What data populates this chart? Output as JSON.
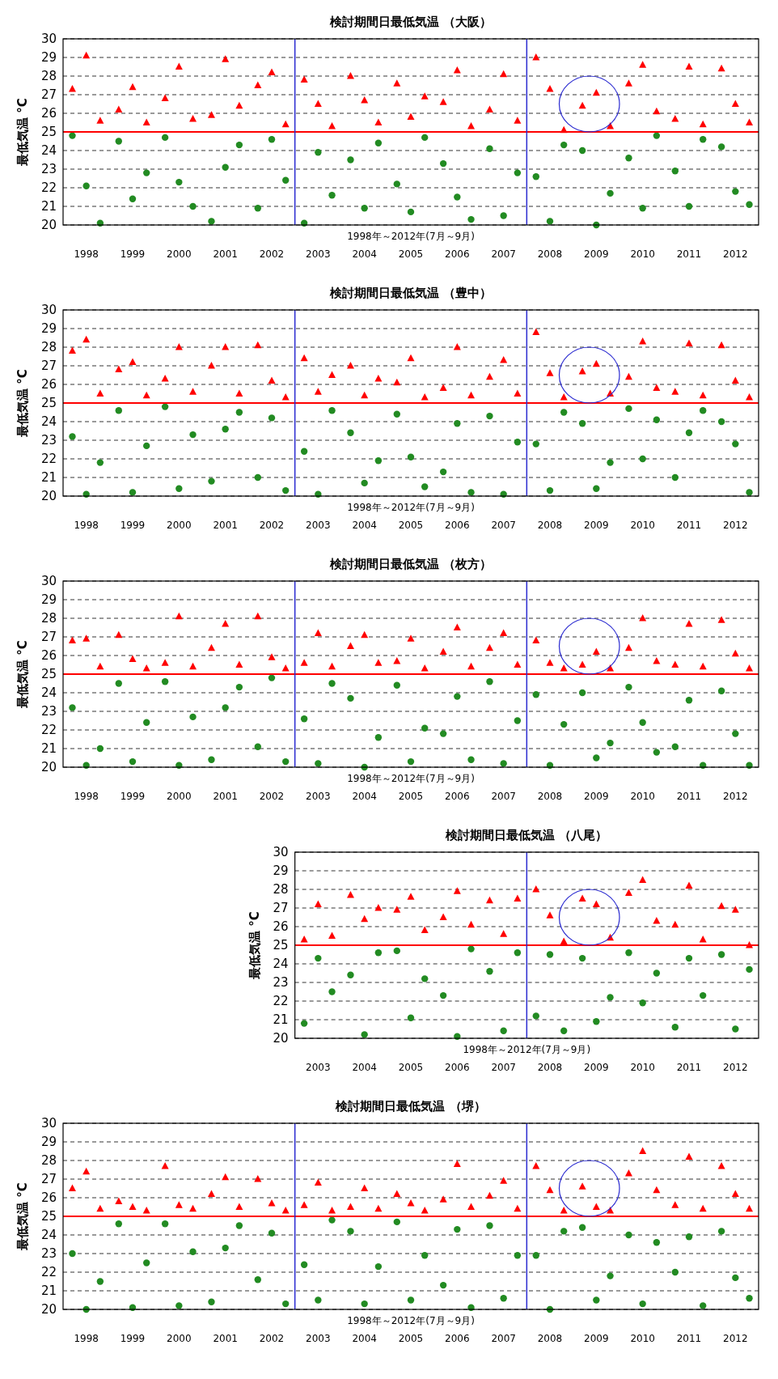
{
  "chart_data": [
    {
      "type": "scatter",
      "title": "検討期間日最低気温 （大阪）",
      "xlabel": "1998年～2012年(7月～9月)",
      "ylabel": "最低気温 °C",
      "xlim": [
        1998,
        2013
      ],
      "xticks": [
        {
          "value": 1998.5,
          "label": "1998"
        },
        {
          "value": 1999.5,
          "label": "1999"
        },
        {
          "value": 2000.5,
          "label": "2000"
        },
        {
          "value": 2001.5,
          "label": "2001"
        },
        {
          "value": 2002.5,
          "label": "2002"
        },
        {
          "value": 2003.5,
          "label": "2003"
        },
        {
          "value": 2004.5,
          "label": "2004"
        },
        {
          "value": 2005.5,
          "label": "2005"
        },
        {
          "value": 2006.5,
          "label": "2006"
        },
        {
          "value": 2007.5,
          "label": "2007"
        },
        {
          "value": 2008.5,
          "label": "2008"
        },
        {
          "value": 2009.5,
          "label": "2009"
        },
        {
          "value": 2010.5,
          "label": "2010"
        },
        {
          "value": 2011.5,
          "label": "2011"
        },
        {
          "value": 2012.5,
          "label": "2012"
        }
      ],
      "ylim": [
        20,
        30
      ],
      "yticks": [
        20,
        21,
        22,
        23,
        24,
        25,
        26,
        27,
        28,
        29,
        30
      ],
      "grid": "y",
      "line_style": "dashed",
      "x": [
        1998.2,
        1998.5,
        1998.8,
        1999.2,
        1999.5,
        1999.8,
        2000.2,
        2000.5,
        2000.8,
        2001.2,
        2001.5,
        2001.8,
        2002.2,
        2002.5,
        2002.8,
        2003.2,
        2003.5,
        2003.8,
        2004.2,
        2004.5,
        2004.8,
        2005.2,
        2005.5,
        2005.8,
        2006.2,
        2006.5,
        2006.8,
        2007.2,
        2007.5,
        2007.8,
        2008.2,
        2008.5,
        2008.8,
        2009.2,
        2009.5,
        2009.8,
        2010.2,
        2010.5,
        2010.8,
        2011.2,
        2011.5,
        2011.8,
        2012.2,
        2012.5,
        2012.8
      ],
      "series": [
        {
          "color": "#ff0000",
          "marker": "triangle",
          "values": [
            27.3,
            29.1,
            25.6,
            26.2,
            27.4,
            25.5,
            26.8,
            28.5,
            25.7,
            25.9,
            28.9,
            26.4,
            27.5,
            28.2,
            25.4,
            27.8,
            26.5,
            25.3,
            28.0,
            26.7,
            25.5,
            27.6,
            25.8,
            26.9,
            26.6,
            28.3,
            25.3,
            26.2,
            28.1,
            25.6,
            29.0,
            27.3,
            25.1,
            26.4,
            27.1,
            25.3,
            27.6,
            28.6,
            26.1,
            25.7,
            28.5,
            25.4,
            28.4,
            26.5,
            25.5
          ]
        },
        {
          "color": "#228b22",
          "marker": "circle",
          "values": [
            24.8,
            22.1,
            20.1,
            24.5,
            21.4,
            22.8,
            24.7,
            22.3,
            21.0,
            20.2,
            23.1,
            24.3,
            20.9,
            24.6,
            22.4,
            20.1,
            23.9,
            21.6,
            23.5,
            20.9,
            24.4,
            22.2,
            20.7,
            24.7,
            23.3,
            21.5,
            20.3,
            24.1,
            20.5,
            22.8,
            22.6,
            20.2,
            24.3,
            24.0,
            20.0,
            21.7,
            23.6,
            20.9,
            24.8,
            22.9,
            21.0,
            24.6,
            24.2,
            21.8,
            21.1
          ]
        }
      ],
      "ref_lines": [
        {
          "axis": "y",
          "value": 25,
          "color": "#ff0000",
          "line_style": "solid"
        },
        {
          "axis": "x",
          "value": 2003,
          "color": "#2a2ad0",
          "line_style": "solid"
        },
        {
          "axis": "x",
          "value": 2008,
          "color": "#2a2ad0",
          "line_style": "solid"
        }
      ]
    },
    {
      "type": "scatter",
      "title": "検討期間日最低気温 （豊中）",
      "xlabel": "1998年～2012年(7月～9月)",
      "ylabel": "最低気温 °C",
      "xlim": [
        1998,
        2013
      ],
      "xticks": [
        {
          "value": 1998.5,
          "label": "1998"
        },
        {
          "value": 1999.5,
          "label": "1999"
        },
        {
          "value": 2000.5,
          "label": "2000"
        },
        {
          "value": 2001.5,
          "label": "2001"
        },
        {
          "value": 2002.5,
          "label": "2002"
        },
        {
          "value": 2003.5,
          "label": "2003"
        },
        {
          "value": 2004.5,
          "label": "2004"
        },
        {
          "value": 2005.5,
          "label": "2005"
        },
        {
          "value": 2006.5,
          "label": "2006"
        },
        {
          "value": 2007.5,
          "label": "2007"
        },
        {
          "value": 2008.5,
          "label": "2008"
        },
        {
          "value": 2009.5,
          "label": "2009"
        },
        {
          "value": 2010.5,
          "label": "2010"
        },
        {
          "value": 2011.5,
          "label": "2011"
        },
        {
          "value": 2012.5,
          "label": "2012"
        }
      ],
      "ylim": [
        20,
        30
      ],
      "yticks": [
        20,
        21,
        22,
        23,
        24,
        25,
        26,
        27,
        28,
        29,
        30
      ],
      "grid": "y",
      "line_style": "dashed",
      "x": [
        1998.2,
        1998.5,
        1998.8,
        1999.2,
        1999.5,
        1999.8,
        2000.2,
        2000.5,
        2000.8,
        2001.2,
        2001.5,
        2001.8,
        2002.2,
        2002.5,
        2002.8,
        2003.2,
        2003.5,
        2003.8,
        2004.2,
        2004.5,
        2004.8,
        2005.2,
        2005.5,
        2005.8,
        2006.2,
        2006.5,
        2006.8,
        2007.2,
        2007.5,
        2007.8,
        2008.2,
        2008.5,
        2008.8,
        2009.2,
        2009.5,
        2009.8,
        2010.2,
        2010.5,
        2010.8,
        2011.2,
        2011.5,
        2011.8,
        2012.2,
        2012.5,
        2012.8
      ],
      "series": [
        {
          "color": "#ff0000",
          "marker": "triangle",
          "values": [
            27.8,
            28.4,
            25.5,
            26.8,
            27.2,
            25.4,
            26.3,
            28.0,
            25.6,
            27.0,
            28.0,
            25.5,
            28.1,
            26.2,
            25.3,
            27.4,
            25.6,
            26.5,
            27.0,
            25.4,
            26.3,
            26.1,
            27.4,
            25.3,
            25.8,
            28.0,
            25.4,
            26.4,
            27.3,
            25.5,
            28.8,
            26.6,
            25.3,
            26.7,
            27.1,
            25.5,
            26.4,
            28.3,
            25.8,
            25.6,
            28.2,
            25.4,
            28.1,
            26.2,
            25.3
          ]
        },
        {
          "color": "#228b22",
          "marker": "circle",
          "values": [
            23.2,
            20.1,
            21.8,
            24.6,
            20.2,
            22.7,
            24.8,
            20.4,
            23.3,
            20.8,
            23.6,
            24.5,
            21.0,
            24.2,
            20.3,
            22.4,
            20.1,
            24.6,
            23.4,
            20.7,
            21.9,
            24.4,
            22.1,
            20.5,
            21.3,
            23.9,
            20.2,
            24.3,
            20.1,
            22.9,
            22.8,
            20.3,
            24.5,
            23.9,
            20.4,
            21.8,
            24.7,
            22.0,
            24.1,
            21.0,
            23.4,
            24.6,
            24.0,
            22.8,
            20.2
          ]
        }
      ],
      "ref_lines": [
        {
          "axis": "y",
          "value": 25,
          "color": "#ff0000",
          "line_style": "solid"
        },
        {
          "axis": "x",
          "value": 2003,
          "color": "#2a2ad0",
          "line_style": "solid"
        },
        {
          "axis": "x",
          "value": 2008,
          "color": "#2a2ad0",
          "line_style": "solid"
        }
      ]
    },
    {
      "type": "scatter",
      "title": "検討期間日最低気温 （枚方）",
      "xlabel": "1998年～2012年(7月～9月)",
      "ylabel": "最低気温 °C",
      "xlim": [
        1998,
        2013
      ],
      "xticks": [
        {
          "value": 1998.5,
          "label": "1998"
        },
        {
          "value": 1999.5,
          "label": "1999"
        },
        {
          "value": 2000.5,
          "label": "2000"
        },
        {
          "value": 2001.5,
          "label": "2001"
        },
        {
          "value": 2002.5,
          "label": "2002"
        },
        {
          "value": 2003.5,
          "label": "2003"
        },
        {
          "value": 2004.5,
          "label": "2004"
        },
        {
          "value": 2005.5,
          "label": "2005"
        },
        {
          "value": 2006.5,
          "label": "2006"
        },
        {
          "value": 2007.5,
          "label": "2007"
        },
        {
          "value": 2008.5,
          "label": "2008"
        },
        {
          "value": 2009.5,
          "label": "2009"
        },
        {
          "value": 2010.5,
          "label": "2010"
        },
        {
          "value": 2011.5,
          "label": "2011"
        },
        {
          "value": 2012.5,
          "label": "2012"
        }
      ],
      "ylim": [
        20,
        30
      ],
      "yticks": [
        20,
        21,
        22,
        23,
        24,
        25,
        26,
        27,
        28,
        29,
        30
      ],
      "grid": "y",
      "line_style": "dashed",
      "x": [
        1998.2,
        1998.5,
        1998.8,
        1999.2,
        1999.5,
        1999.8,
        2000.2,
        2000.5,
        2000.8,
        2001.2,
        2001.5,
        2001.8,
        2002.2,
        2002.5,
        2002.8,
        2003.2,
        2003.5,
        2003.8,
        2004.2,
        2004.5,
        2004.8,
        2005.2,
        2005.5,
        2005.8,
        2006.2,
        2006.5,
        2006.8,
        2007.2,
        2007.5,
        2007.8,
        2008.2,
        2008.5,
        2008.8,
        2009.2,
        2009.5,
        2009.8,
        2010.2,
        2010.5,
        2010.8,
        2011.2,
        2011.5,
        2011.8,
        2012.2,
        2012.5,
        2012.8
      ],
      "series": [
        {
          "color": "#ff0000",
          "marker": "triangle",
          "values": [
            26.8,
            26.9,
            25.4,
            27.1,
            25.8,
            25.3,
            25.6,
            28.1,
            25.4,
            26.4,
            27.7,
            25.5,
            28.1,
            25.9,
            25.3,
            25.6,
            27.2,
            25.4,
            26.5,
            27.1,
            25.6,
            25.7,
            26.9,
            25.3,
            26.2,
            27.5,
            25.4,
            26.4,
            27.2,
            25.5,
            26.8,
            25.6,
            25.3,
            25.5,
            26.2,
            25.3,
            26.4,
            28.0,
            25.7,
            25.5,
            27.7,
            25.4,
            27.9,
            26.1,
            25.3
          ]
        },
        {
          "color": "#228b22",
          "marker": "circle",
          "values": [
            23.2,
            20.1,
            21.0,
            24.5,
            20.3,
            22.4,
            24.6,
            20.1,
            22.7,
            20.4,
            23.2,
            24.3,
            21.1,
            24.8,
            20.3,
            22.6,
            20.2,
            24.5,
            23.7,
            20.0,
            21.6,
            24.4,
            20.3,
            22.1,
            21.8,
            23.8,
            20.4,
            24.6,
            20.2,
            22.5,
            23.9,
            20.1,
            22.3,
            24.0,
            20.5,
            21.3,
            24.3,
            22.4,
            20.8,
            21.1,
            23.6,
            20.1,
            24.1,
            21.8,
            20.1
          ]
        }
      ],
      "ref_lines": [
        {
          "axis": "y",
          "value": 25,
          "color": "#ff0000",
          "line_style": "solid"
        },
        {
          "axis": "x",
          "value": 2003,
          "color": "#2a2ad0",
          "line_style": "solid"
        },
        {
          "axis": "x",
          "value": 2008,
          "color": "#2a2ad0",
          "line_style": "solid"
        }
      ]
    },
    {
      "type": "scatter",
      "title": "検討期間日最低気温 （八尾）",
      "xlabel": "1998年～2012年(7月～9月)",
      "ylabel": "最低気温 °C",
      "xlim": [
        2003,
        2013
      ],
      "xticks": [
        {
          "value": 2003.5,
          "label": "2003"
        },
        {
          "value": 2004.5,
          "label": "2004"
        },
        {
          "value": 2005.5,
          "label": "2005"
        },
        {
          "value": 2006.5,
          "label": "2006"
        },
        {
          "value": 2007.5,
          "label": "2007"
        },
        {
          "value": 2008.5,
          "label": "2008"
        },
        {
          "value": 2009.5,
          "label": "2009"
        },
        {
          "value": 2010.5,
          "label": "2010"
        },
        {
          "value": 2011.5,
          "label": "2011"
        },
        {
          "value": 2012.5,
          "label": "2012"
        }
      ],
      "ylim": [
        20,
        30
      ],
      "yticks": [
        20,
        21,
        22,
        23,
        24,
        25,
        26,
        27,
        28,
        29,
        30
      ],
      "grid": "y",
      "line_style": "dashed",
      "x": [
        2003.2,
        2003.5,
        2003.8,
        2004.2,
        2004.5,
        2004.8,
        2005.2,
        2005.5,
        2005.8,
        2006.2,
        2006.5,
        2006.8,
        2007.2,
        2007.5,
        2007.8,
        2008.2,
        2008.5,
        2008.8,
        2009.2,
        2009.5,
        2009.8,
        2010.2,
        2010.5,
        2010.8,
        2011.2,
        2011.5,
        2011.8,
        2012.2,
        2012.5,
        2012.8
      ],
      "series": [
        {
          "color": "#ff0000",
          "marker": "triangle",
          "values": [
            25.3,
            27.2,
            25.5,
            27.7,
            26.4,
            27.0,
            26.9,
            27.6,
            25.8,
            26.5,
            27.9,
            26.1,
            27.4,
            25.6,
            27.5,
            28.0,
            26.6,
            25.2,
            27.5,
            27.2,
            25.4,
            27.8,
            28.5,
            26.3,
            26.1,
            28.2,
            25.3,
            27.1,
            26.9,
            25.0
          ]
        },
        {
          "color": "#228b22",
          "marker": "circle",
          "values": [
            20.8,
            24.3,
            22.5,
            23.4,
            20.2,
            24.6,
            24.7,
            21.1,
            23.2,
            22.3,
            20.1,
            24.8,
            23.6,
            20.4,
            24.6,
            21.2,
            24.5,
            20.4,
            24.3,
            20.9,
            22.2,
            24.6,
            21.9,
            23.5,
            20.6,
            24.3,
            22.3,
            24.5,
            20.5,
            23.7
          ]
        }
      ],
      "ref_lines": [
        {
          "axis": "y",
          "value": 25,
          "color": "#ff0000",
          "line_style": "solid"
        },
        {
          "axis": "x",
          "value": 2008,
          "color": "#2a2ad0",
          "line_style": "solid"
        }
      ]
    },
    {
      "type": "scatter",
      "title": "検討期間日最低気温 （堺）",
      "xlabel": "1998年～2012年(7月～9月)",
      "ylabel": "最低気温 °C",
      "xlim": [
        1998,
        2013
      ],
      "xticks": [
        {
          "value": 1998.5,
          "label": "1998"
        },
        {
          "value": 1999.5,
          "label": "1999"
        },
        {
          "value": 2000.5,
          "label": "2000"
        },
        {
          "value": 2001.5,
          "label": "2001"
        },
        {
          "value": 2002.5,
          "label": "2002"
        },
        {
          "value": 2003.5,
          "label": "2003"
        },
        {
          "value": 2004.5,
          "label": "2004"
        },
        {
          "value": 2005.5,
          "label": "2005"
        },
        {
          "value": 2006.5,
          "label": "2006"
        },
        {
          "value": 2007.5,
          "label": "2007"
        },
        {
          "value": 2008.5,
          "label": "2008"
        },
        {
          "value": 2009.5,
          "label": "2009"
        },
        {
          "value": 2010.5,
          "label": "2010"
        },
        {
          "value": 2011.5,
          "label": "2011"
        },
        {
          "value": 2012.5,
          "label": "2012"
        }
      ],
      "ylim": [
        20,
        30
      ],
      "yticks": [
        20,
        21,
        22,
        23,
        24,
        25,
        26,
        27,
        28,
        29,
        30
      ],
      "grid": "y",
      "line_style": "dashed",
      "x": [
        1998.2,
        1998.5,
        1998.8,
        1999.2,
        1999.5,
        1999.8,
        2000.2,
        2000.5,
        2000.8,
        2001.2,
        2001.5,
        2001.8,
        2002.2,
        2002.5,
        2002.8,
        2003.2,
        2003.5,
        2003.8,
        2004.2,
        2004.5,
        2004.8,
        2005.2,
        2005.5,
        2005.8,
        2006.2,
        2006.5,
        2006.8,
        2007.2,
        2007.5,
        2007.8,
        2008.2,
        2008.5,
        2008.8,
        2009.2,
        2009.5,
        2009.8,
        2010.2,
        2010.5,
        2010.8,
        2011.2,
        2011.5,
        2011.8,
        2012.2,
        2012.5,
        2012.8
      ],
      "series": [
        {
          "color": "#ff0000",
          "marker": "triangle",
          "values": [
            26.5,
            27.4,
            25.4,
            25.8,
            25.5,
            25.3,
            27.7,
            25.6,
            25.4,
            26.2,
            27.1,
            25.5,
            27.0,
            25.7,
            25.3,
            25.6,
            26.8,
            25.3,
            25.5,
            26.5,
            25.4,
            26.2,
            25.7,
            25.3,
            25.9,
            27.8,
            25.5,
            26.1,
            26.9,
            25.4,
            27.7,
            26.4,
            25.3,
            26.6,
            25.5,
            25.3,
            27.3,
            28.5,
            26.4,
            25.6,
            28.2,
            25.4,
            27.7,
            26.2,
            25.4
          ]
        },
        {
          "color": "#228b22",
          "marker": "circle",
          "values": [
            23.0,
            20.0,
            21.5,
            24.6,
            20.1,
            22.5,
            24.6,
            20.2,
            23.1,
            20.4,
            23.3,
            24.5,
            21.6,
            24.1,
            20.3,
            22.4,
            20.5,
            24.8,
            24.2,
            20.3,
            22.3,
            24.7,
            20.5,
            22.9,
            21.3,
            24.3,
            20.1,
            24.5,
            20.6,
            22.9,
            22.9,
            20.0,
            24.2,
            24.4,
            20.5,
            21.8,
            24.0,
            20.3,
            23.6,
            22.0,
            23.9,
            20.2,
            24.2,
            21.7,
            20.6
          ]
        }
      ],
      "ref_lines": [
        {
          "axis": "y",
          "value": 25,
          "color": "#ff0000",
          "line_style": "solid"
        },
        {
          "axis": "x",
          "value": 2003,
          "color": "#2a2ad0",
          "line_style": "solid"
        },
        {
          "axis": "x",
          "value": 2008,
          "color": "#2a2ad0",
          "line_style": "solid"
        }
      ]
    }
  ]
}
